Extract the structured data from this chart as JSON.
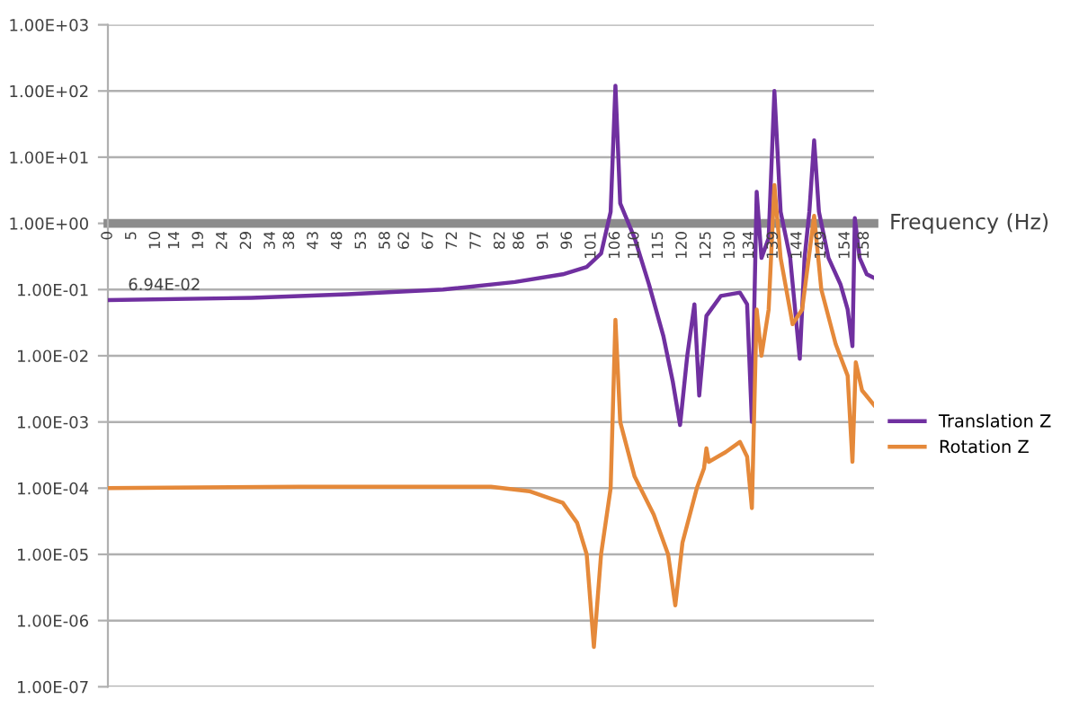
{
  "chart_data": {
    "type": "line",
    "xlabel": "Frequency (Hz)",
    "log": "y",
    "grid": "y",
    "legend": "right",
    "marker": "none",
    "line_style": "solid",
    "xlim": [
      0,
      160
    ],
    "xticks": [
      0,
      5,
      10,
      14,
      19,
      24,
      29,
      34,
      38,
      43,
      48,
      53,
      58,
      62,
      67,
      72,
      77,
      82,
      86,
      91,
      96,
      101,
      106,
      110,
      115,
      120,
      125,
      130,
      134,
      139,
      144,
      149,
      154,
      158
    ],
    "ylim": [
      1e-07,
      1000
    ],
    "yticks": [
      {
        "value": 1000,
        "label": "1.00E+03"
      },
      {
        "value": 100,
        "label": "1.00E+02"
      },
      {
        "value": 10,
        "label": "1.00E+01"
      },
      {
        "value": 1,
        "label": "1.00E+00"
      },
      {
        "value": 0.1,
        "label": "1.00E-01"
      },
      {
        "value": 0.01,
        "label": "1.00E-02"
      },
      {
        "value": 0.001,
        "label": "1.00E-03"
      },
      {
        "value": 0.0001,
        "label": "1.00E-04"
      },
      {
        "value": 1e-05,
        "label": "1.00E-05"
      },
      {
        "value": 1e-06,
        "label": "1.00E-06"
      },
      {
        "value": 1e-07,
        "label": "1.00E-07"
      }
    ],
    "annotations": [
      {
        "text": "6.94E-02",
        "x": 0,
        "y": 0.0694
      }
    ],
    "series": [
      {
        "name": "Translation Z",
        "color": "#7030a0",
        "x": [
          0,
          30,
          50,
          70,
          85,
          95,
          100,
          103,
          105,
          106,
          107,
          110,
          113,
          116,
          118,
          119.5,
          121,
          122.5,
          123.5,
          125,
          128,
          132,
          133.5,
          134.5,
          135.5,
          136.5,
          138,
          139.2,
          140.5,
          142.5,
          144.5,
          145.5,
          146.5,
          147.5,
          148.5,
          150.5,
          153,
          154.5,
          155.5,
          156,
          157,
          158.5,
          160
        ],
        "values": [
          0.0694,
          0.075,
          0.085,
          0.1,
          0.13,
          0.17,
          0.22,
          0.35,
          1.5,
          120,
          2,
          0.6,
          0.12,
          0.02,
          0.004,
          0.0009,
          0.01,
          0.06,
          0.0025,
          0.04,
          0.08,
          0.09,
          0.06,
          0.001,
          3,
          0.3,
          0.6,
          100,
          1.5,
          0.3,
          0.009,
          0.3,
          1.5,
          18,
          1.5,
          0.3,
          0.12,
          0.05,
          0.014,
          1.2,
          0.3,
          0.17,
          0.15
        ]
      },
      {
        "name": "Rotation Z",
        "color": "#e5893a",
        "x": [
          0,
          40,
          80,
          88,
          95,
          98,
          100,
          101.5,
          103,
          105,
          106,
          107,
          110,
          114,
          117,
          118.5,
          120,
          123,
          124.5,
          125,
          125.5,
          129,
          132,
          133.5,
          134.5,
          135.5,
          136.5,
          138,
          139.2,
          140.5,
          143,
          145,
          147.5,
          149,
          152,
          154.5,
          155.5,
          156.2,
          157.5,
          160
        ],
        "values": [
          0.0001,
          0.000105,
          0.000105,
          9e-05,
          6e-05,
          3e-05,
          1e-05,
          4e-07,
          1e-05,
          0.0001,
          0.035,
          0.001,
          0.00015,
          4e-05,
          1e-05,
          1.7e-06,
          1.5e-05,
          0.0001,
          0.0002,
          0.0004,
          0.00025,
          0.00035,
          0.0005,
          0.0003,
          5e-05,
          0.05,
          0.01,
          0.05,
          3.8,
          0.3,
          0.03,
          0.05,
          1.3,
          0.1,
          0.015,
          0.005,
          0.00025,
          0.008,
          0.003,
          0.0018
        ]
      }
    ]
  }
}
